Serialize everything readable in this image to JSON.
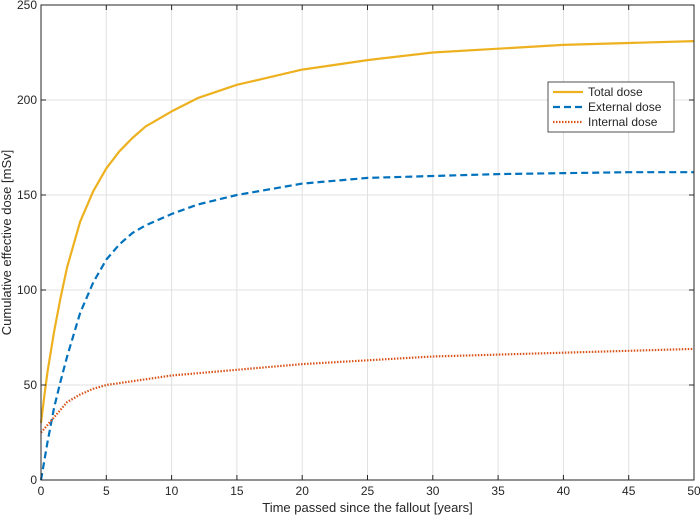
{
  "chart_data": {
    "type": "line",
    "title": "",
    "xlabel": "Time passed since the fallout [years]",
    "ylabel": "Cumulative effective dose [mSv]",
    "xlim": [
      0,
      50
    ],
    "ylim": [
      0,
      250
    ],
    "xticks": [
      0,
      5,
      10,
      15,
      20,
      25,
      30,
      35,
      40,
      45,
      50
    ],
    "yticks": [
      0,
      50,
      100,
      150,
      200,
      250
    ],
    "grid": true,
    "legend_position": "top-right",
    "series": [
      {
        "name": "Total dose",
        "color": "#EDB120",
        "style": "solid",
        "x": [
          0,
          0.25,
          0.5,
          1,
          1.5,
          2,
          3,
          4,
          5,
          6,
          7,
          8,
          10,
          12,
          15,
          20,
          25,
          30,
          35,
          40,
          45,
          50
        ],
        "y": [
          30,
          44,
          57,
          78,
          96,
          112,
          136,
          152,
          164,
          173,
          180,
          186,
          194,
          201,
          208,
          216,
          221,
          225,
          227,
          229,
          230,
          231
        ]
      },
      {
        "name": "External dose",
        "color": "#0072BD",
        "style": "dashed",
        "x": [
          0,
          0.25,
          0.5,
          1,
          1.5,
          2,
          3,
          4,
          5,
          6,
          7,
          8,
          10,
          12,
          15,
          20,
          25,
          30,
          35,
          40,
          45,
          50
        ],
        "y": [
          0,
          10,
          20,
          38,
          52,
          65,
          88,
          104,
          116,
          124,
          130,
          134,
          140,
          145,
          150,
          156,
          159,
          160,
          161,
          161.5,
          162,
          162
        ]
      },
      {
        "name": "Internal dose",
        "color": "#D95319",
        "style": "dotted",
        "x": [
          0,
          0.25,
          0.5,
          1,
          1.5,
          2,
          3,
          4,
          5,
          7,
          10,
          15,
          20,
          25,
          30,
          35,
          40,
          45,
          50
        ],
        "y": [
          25,
          27,
          29,
          33,
          37,
          41,
          45,
          48,
          50,
          52,
          55,
          58,
          61,
          63,
          65,
          66,
          67,
          68,
          69
        ]
      }
    ]
  }
}
